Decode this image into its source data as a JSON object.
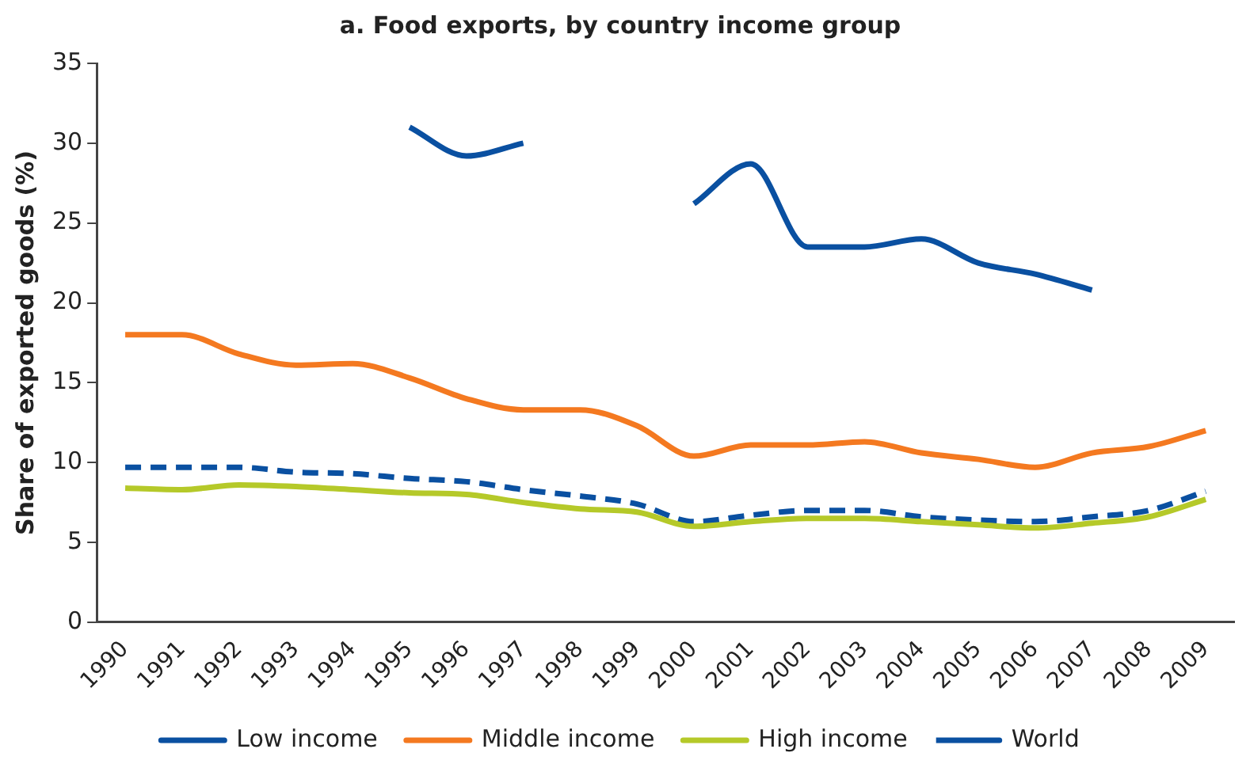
{
  "chart_data": {
    "type": "line",
    "title": "a. Food exports, by country income group",
    "ylabel": "Share of exported goods (%)",
    "categories": [
      "1990",
      "1991",
      "1992",
      "1993",
      "1994",
      "1995",
      "1996",
      "1997",
      "1998",
      "1999",
      "2000",
      "2001",
      "2002",
      "2003",
      "2004",
      "2005",
      "2006",
      "2007",
      "2008",
      "2009"
    ],
    "ylim": [
      0,
      35
    ],
    "yticks": [
      0,
      5,
      10,
      15,
      20,
      25,
      30,
      35
    ],
    "grid": false,
    "legend": "bottom",
    "marker": "none",
    "series": [
      {
        "name": "Low income",
        "color": "#0a50a1",
        "line_style": "solid",
        "values": [
          null,
          null,
          null,
          null,
          null,
          31.0,
          29.2,
          30.0,
          null,
          null,
          26.2,
          28.7,
          23.5,
          23.5,
          24.0,
          22.5,
          21.8,
          20.8,
          null,
          null
        ]
      },
      {
        "name": "Middle income",
        "color": "#f47920",
        "line_style": "solid",
        "values": [
          18.0,
          18.0,
          16.8,
          16.1,
          16.2,
          15.3,
          14.0,
          13.3,
          13.3,
          12.3,
          10.4,
          11.1,
          11.1,
          11.3,
          10.6,
          10.2,
          9.7,
          10.6,
          11.0,
          12.0
        ]
      },
      {
        "name": "High income",
        "color": "#b5c929",
        "line_style": "solid",
        "values": [
          8.4,
          8.3,
          8.6,
          8.5,
          8.3,
          8.1,
          8.0,
          7.5,
          7.1,
          6.9,
          6.0,
          6.3,
          6.5,
          6.5,
          6.3,
          6.1,
          5.9,
          6.2,
          6.6,
          7.7
        ]
      },
      {
        "name": "World",
        "color": "#0a50a1",
        "line_style": "dashed",
        "values": [
          9.7,
          9.7,
          9.7,
          9.4,
          9.3,
          9.0,
          8.8,
          8.3,
          7.9,
          7.4,
          6.3,
          6.7,
          7.0,
          7.0,
          6.6,
          6.4,
          6.3,
          6.6,
          7.0,
          8.2
        ]
      }
    ]
  }
}
